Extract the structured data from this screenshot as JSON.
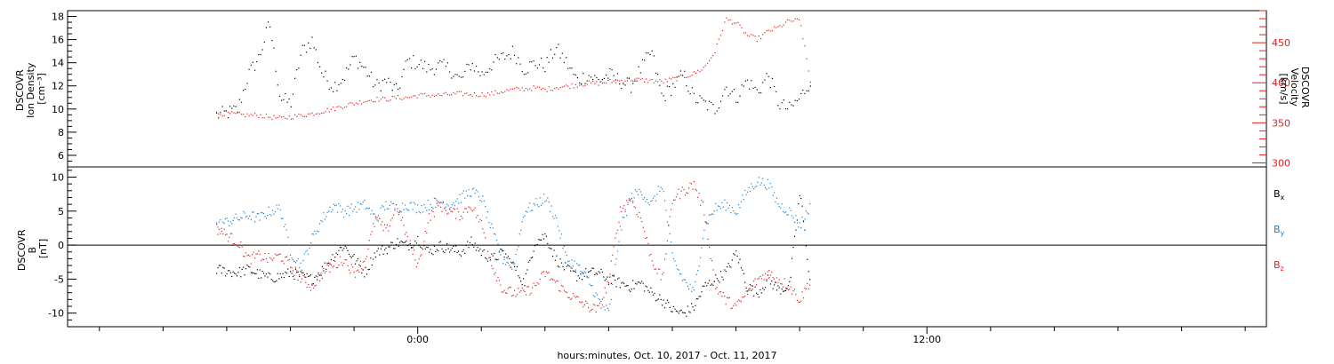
{
  "colors": {
    "black": "#000000",
    "red": "#e02020",
    "blue": "#1a80d0"
  },
  "chart_data": [
    {
      "type": "scatter",
      "panel": "top",
      "ylabel_lines": [
        "DSCOVR",
        "Ion Density",
        "[cm⁻³]"
      ],
      "ylim": [
        5.0,
        18.5
      ],
      "yticks": [
        6,
        8,
        10,
        12,
        14,
        16,
        18
      ],
      "y2label_lines": [
        "DSCOVR",
        "Velocity",
        "[km/s]"
      ],
      "y2lim": [
        295,
        490
      ],
      "y2ticks": [
        300,
        350,
        400,
        450
      ],
      "series": [
        {
          "name": "Ion Density",
          "color": "black",
          "axis": "left",
          "x": [
            -9.5,
            -9.0,
            -8.5,
            -8.0,
            -7.5,
            -7.0,
            -6.5,
            -6.0,
            -5.5,
            -5.0,
            -4.5,
            -4.0,
            -3.5,
            -3.0,
            -2.5,
            -2.0,
            -1.5,
            -1.0,
            -0.5,
            0.0,
            0.5,
            1.0,
            1.5,
            2.0,
            2.5,
            3.0,
            3.5,
            4.0,
            4.5,
            5.0,
            5.5,
            6.0,
            6.5,
            7.0,
            7.5,
            8.0,
            8.5,
            9.0,
            9.5,
            10.0,
            10.5,
            11.0,
            11.5,
            12.0,
            12.5,
            13.0,
            13.5,
            14.0,
            14.5,
            15.0,
            15.5,
            16.0,
            16.5,
            17.0,
            17.5,
            18.0,
            18.5
          ],
          "y": [
            9.5,
            9.7,
            10.0,
            13.0,
            14.5,
            17.5,
            11.0,
            10.5,
            15.0,
            16.0,
            13.0,
            12.0,
            12.8,
            14.5,
            13.5,
            12.0,
            12.5,
            11.5,
            14.2,
            14.0,
            13.5,
            13.8,
            13.5,
            12.5,
            14.0,
            13.0,
            14.0,
            14.5,
            15.0,
            13.5,
            14.0,
            13.8,
            15.3,
            14.0,
            12.5,
            13.0,
            12.5,
            13.0,
            12.5,
            12.0,
            13.5,
            15.0,
            11.0,
            12.0,
            13.0,
            11.0,
            10.5,
            10.0,
            12.0,
            11.0,
            12.5,
            11.5,
            13.0,
            10.5,
            10.0,
            11.0,
            12.5
          ]
        },
        {
          "name": "Velocity",
          "color": "red",
          "axis": "right",
          "x": [
            -9.5,
            -9.0,
            -8.5,
            -8.0,
            -7.5,
            -7.0,
            -6.5,
            -6.0,
            -5.5,
            -5.0,
            -4.5,
            -4.0,
            -3.5,
            -3.0,
            -2.5,
            -2.0,
            -1.5,
            -1.0,
            -0.5,
            0.0,
            0.5,
            1.0,
            1.5,
            2.0,
            2.5,
            3.0,
            3.5,
            4.0,
            4.5,
            5.0,
            5.5,
            6.0,
            6.5,
            7.0,
            7.5,
            8.0,
            8.5,
            9.0,
            9.5,
            10.0,
            10.5,
            11.0,
            11.5,
            12.0,
            12.5,
            13.0,
            13.5,
            14.0,
            14.5,
            15.0,
            15.5,
            16.0,
            16.5,
            17.0,
            17.5,
            18.0,
            18.5
          ],
          "y": [
            362,
            362,
            361,
            360,
            360,
            358,
            356,
            358,
            360,
            362,
            365,
            368,
            372,
            375,
            378,
            380,
            380,
            382,
            382,
            385,
            385,
            385,
            386,
            387,
            386,
            386,
            387,
            390,
            392,
            393,
            394,
            392,
            395,
            396,
            398,
            400,
            400,
            402,
            403,
            405,
            404,
            403,
            402,
            405,
            408,
            412,
            420,
            440,
            480,
            475,
            460,
            455,
            465,
            470,
            478,
            478,
            400
          ]
        }
      ]
    },
    {
      "type": "scatter",
      "panel": "bottom",
      "ylabel_lines": [
        "DSCOVR",
        "B",
        "[nT]"
      ],
      "ylim": [
        -12,
        11.5
      ],
      "yticks": [
        -10,
        -5,
        0,
        5,
        10
      ],
      "zero_line": true,
      "legend_position": "right",
      "series": [
        {
          "name": "Bx",
          "legend_label": [
            "B",
            "x"
          ],
          "color": "black",
          "x": [
            -9.5,
            -9.0,
            -8.5,
            -8.0,
            -7.5,
            -7.0,
            -6.5,
            -6.0,
            -5.5,
            -5.0,
            -4.5,
            -4.0,
            -3.5,
            -3.0,
            -2.5,
            -2.0,
            -1.5,
            -1.0,
            -0.5,
            0.0,
            0.5,
            1.0,
            1.5,
            2.0,
            2.5,
            3.0,
            3.5,
            4.0,
            4.5,
            5.0,
            5.5,
            6.0,
            6.5,
            7.0,
            7.5,
            8.0,
            8.5,
            9.0,
            9.5,
            10.0,
            10.5,
            11.0,
            11.5,
            12.0,
            12.5,
            13.0,
            13.5,
            14.0,
            14.5,
            15.0,
            15.5,
            16.0,
            16.5,
            17.0,
            17.5,
            18.0,
            18.5
          ],
          "y": [
            -3.5,
            -3.8,
            -4.0,
            -3.5,
            -4.2,
            -4.8,
            -4.5,
            -4.0,
            -4.5,
            -5.0,
            -3.5,
            -1.5,
            0.0,
            -2.0,
            -4.0,
            -1.0,
            -0.5,
            0.5,
            0.0,
            1.0,
            -1.0,
            0.0,
            -0.5,
            -1.0,
            0.5,
            -1.0,
            -2.0,
            -1.0,
            -3.0,
            -5.5,
            0.5,
            1.5,
            -2.0,
            -3.5,
            -4.5,
            -4.0,
            -4.0,
            -5.0,
            -5.5,
            -6.0,
            -5.5,
            -7.0,
            -8.0,
            -9.5,
            -10.0,
            -9.0,
            -6.0,
            -5.0,
            -4.0,
            -1.0,
            -6.0,
            -7.0,
            -5.0,
            -6.5,
            -6.0,
            8.0,
            -6.0
          ]
        },
        {
          "name": "By",
          "legend_label": [
            "B",
            "y"
          ],
          "color": "blue",
          "x": [
            -9.5,
            -9.0,
            -8.5,
            -8.0,
            -7.5,
            -7.0,
            -6.5,
            -6.0,
            -5.5,
            -5.0,
            -4.5,
            -4.0,
            -3.5,
            -3.0,
            -2.5,
            -2.0,
            -1.5,
            -1.0,
            -0.5,
            0.0,
            0.5,
            1.0,
            1.5,
            2.0,
            2.5,
            3.0,
            3.5,
            4.0,
            4.5,
            5.0,
            5.5,
            6.0,
            6.5,
            7.0,
            7.5,
            8.0,
            8.5,
            9.0,
            9.5,
            10.0,
            10.5,
            11.0,
            11.5,
            12.0,
            12.5,
            13.0,
            13.5,
            14.0,
            14.5,
            15.0,
            15.5,
            16.0,
            16.5,
            17.0,
            17.5,
            18.0,
            18.5
          ],
          "y": [
            3.0,
            3.5,
            4.0,
            4.5,
            4.0,
            5.0,
            5.5,
            -1.0,
            -3.0,
            1.0,
            4.0,
            6.0,
            5.0,
            5.5,
            6.0,
            4.0,
            6.0,
            5.5,
            6.0,
            5.5,
            6.0,
            6.5,
            6.0,
            7.0,
            8.0,
            7.0,
            2.0,
            -2.0,
            -3.0,
            5.0,
            6.0,
            7.0,
            4.0,
            -2.0,
            -3.0,
            -5.0,
            -8.0,
            -10.0,
            2.0,
            7.0,
            8.0,
            6.0,
            9.0,
            -2.0,
            -5.0,
            -7.0,
            3.0,
            5.5,
            6.0,
            5.0,
            8.0,
            9.5,
            9.0,
            6.0,
            5.0,
            3.0,
            6.0
          ]
        },
        {
          "name": "Bz",
          "legend_label": [
            "B",
            "z"
          ],
          "color": "red",
          "x": [
            -9.5,
            -9.0,
            -8.5,
            -8.0,
            -7.5,
            -7.0,
            -6.5,
            -6.0,
            -5.5,
            -5.0,
            -4.5,
            -4.0,
            -3.5,
            -3.0,
            -2.5,
            -2.0,
            -1.5,
            -1.0,
            -0.5,
            0.0,
            0.5,
            1.0,
            1.5,
            2.0,
            2.5,
            3.0,
            3.5,
            4.0,
            4.5,
            5.0,
            5.5,
            6.0,
            6.5,
            7.0,
            7.5,
            8.0,
            8.5,
            9.0,
            9.5,
            10.0,
            10.5,
            11.0,
            11.5,
            12.0,
            12.5,
            13.0,
            13.5,
            14.0,
            14.5,
            15.0,
            15.5,
            16.0,
            16.5,
            17.0,
            17.5,
            18.0,
            18.5
          ],
          "y": [
            2.5,
            1.5,
            0.5,
            -2.0,
            -1.5,
            -2.0,
            -1.5,
            -3.0,
            -5.0,
            -6.0,
            -4.0,
            -3.0,
            -2.0,
            -4.0,
            -2.0,
            4.0,
            2.0,
            6.0,
            1.0,
            -3.0,
            4.0,
            6.0,
            5.0,
            4.5,
            6.0,
            3.0,
            -3.0,
            -6.5,
            -7.0,
            -7.0,
            -6.0,
            -4.0,
            -5.5,
            -7.0,
            -8.0,
            -9.0,
            -9.5,
            -5.0,
            5.0,
            7.0,
            4.0,
            -2.0,
            -5.0,
            7.0,
            8.0,
            9.0,
            5.0,
            -6.0,
            -8.0,
            -9.0,
            -7.0,
            -5.0,
            -4.0,
            -5.0,
            -6.0,
            -8.0,
            -5.0
          ]
        }
      ]
    }
  ],
  "x_axis": {
    "range_hours": [
      -16.5,
      40
    ],
    "tick_labels": [
      {
        "hour": 0,
        "label": "0:00"
      },
      {
        "hour": 24,
        "label": "12:00"
      }
    ],
    "xlabel": "hours:minutes, Oct. 10, 2017 - Oct. 11, 2017"
  }
}
